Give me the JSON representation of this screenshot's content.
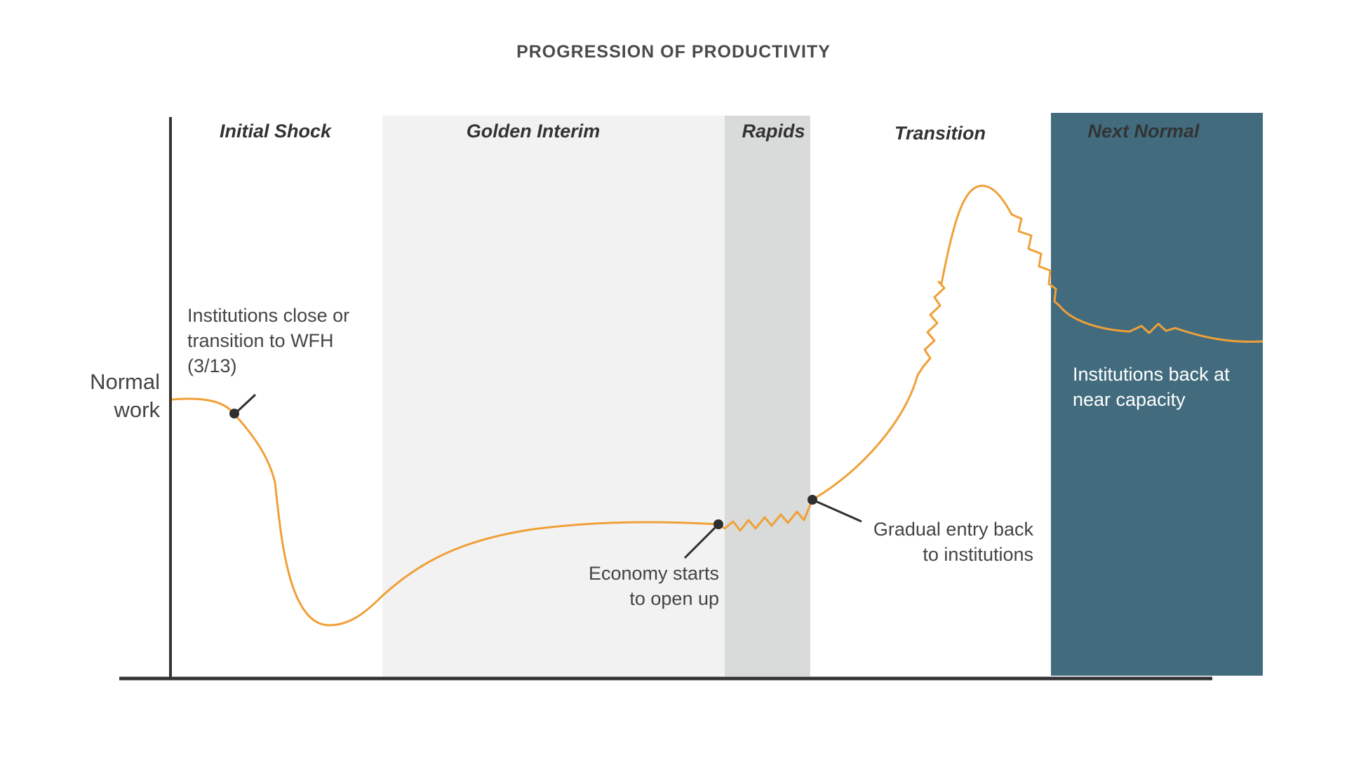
{
  "title": "PROGRESSION OF PRODUCTIVITY",
  "y_axis_label": [
    "Normal",
    "work"
  ],
  "phases": [
    {
      "id": "initial-shock",
      "label": "Initial Shock",
      "fill": "#ffffff"
    },
    {
      "id": "golden-interim",
      "label": "Golden Interim",
      "fill": "#f2f2f2"
    },
    {
      "id": "rapids",
      "label": "Rapids",
      "fill": "#d9dbdb"
    },
    {
      "id": "transition",
      "label": "Transition",
      "fill": "#ffffff"
    },
    {
      "id": "next-normal",
      "label": "Next Normal",
      "fill": "#426c7e"
    }
  ],
  "annotations": {
    "institutions_close": [
      "Institutions close or",
      "transition to WFH",
      "(3/13)"
    ],
    "economy_opens": [
      "Economy starts",
      "to open up"
    ],
    "gradual_entry": [
      "Gradual entry back",
      "to institutions"
    ],
    "back_capacity": [
      "Institutions back at",
      "near capacity"
    ]
  },
  "colors": {
    "curve": "#f0a038",
    "axis": "#333333",
    "marker": "#2f2f2f"
  }
}
